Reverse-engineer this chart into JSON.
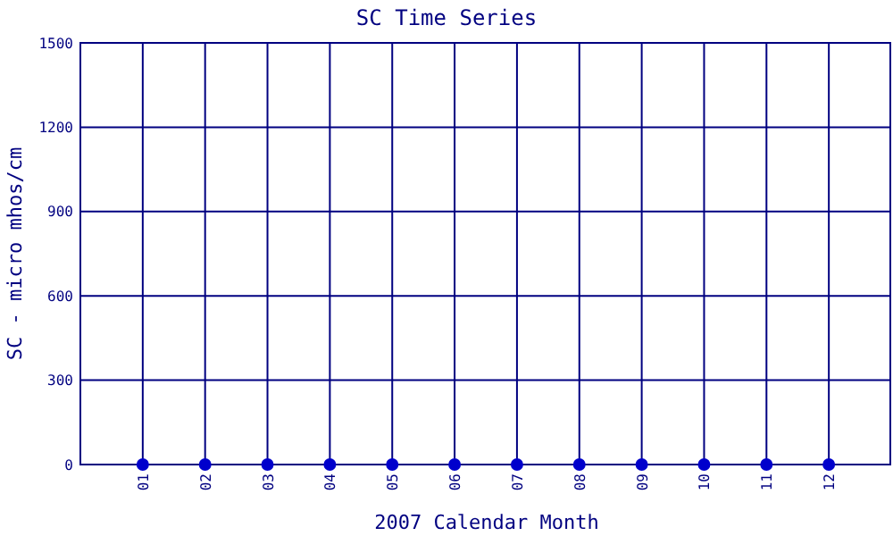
{
  "chart_data": {
    "type": "scatter",
    "title": "SC Time Series",
    "xlabel": "2007 Calendar Month",
    "ylabel": "SC - micro mhos/cm",
    "categories": [
      "01",
      "02",
      "03",
      "04",
      "05",
      "06",
      "07",
      "08",
      "09",
      "10",
      "11",
      "12"
    ],
    "series": [
      {
        "color": "#0000cc",
        "values": [
          0,
          0,
          0,
          0,
          0,
          0,
          0,
          0,
          0,
          0,
          0,
          0
        ]
      }
    ],
    "ylim": [
      0,
      1500
    ],
    "yticks": [
      0,
      300,
      600,
      900,
      1200,
      1500
    ],
    "grid": true,
    "marker": "circle"
  }
}
